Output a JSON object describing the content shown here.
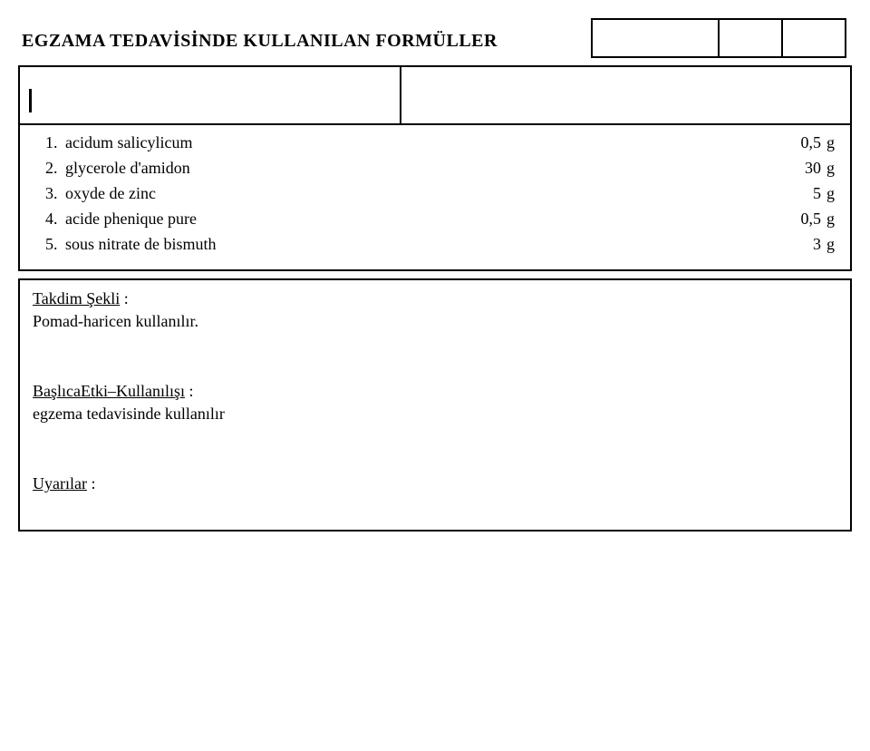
{
  "title": "EGZAMA TEDAVİSİNDE KULLANILAN FORMÜLLER",
  "ingredients": [
    {
      "num": "1.",
      "name": "acidum salicylicum",
      "amount": "0,5",
      "unit": "g"
    },
    {
      "num": "2.",
      "name": "glycerole d'amidon",
      "amount": "30",
      "unit": "g"
    },
    {
      "num": "3.",
      "name": "oxyde de zinc",
      "amount": "5",
      "unit": "g"
    },
    {
      "num": "4.",
      "name": "acide phenique pure",
      "amount": "0,5",
      "unit": "g"
    },
    {
      "num": "5.",
      "name": "sous nitrate de bismuth",
      "amount": "3",
      "unit": "g"
    }
  ],
  "sections": {
    "takdim": {
      "head": "Takdim Şekli",
      "colon": " :",
      "body": "Pomad-haricen kullanılır."
    },
    "etki": {
      "head": "BaşlıcaEtki–Kullanılışı",
      "colon": " :",
      "body": "egzema tedavisinde kullanılır"
    },
    "uyari": {
      "head": "Uyarılar",
      "colon": " :",
      "body": ""
    }
  }
}
